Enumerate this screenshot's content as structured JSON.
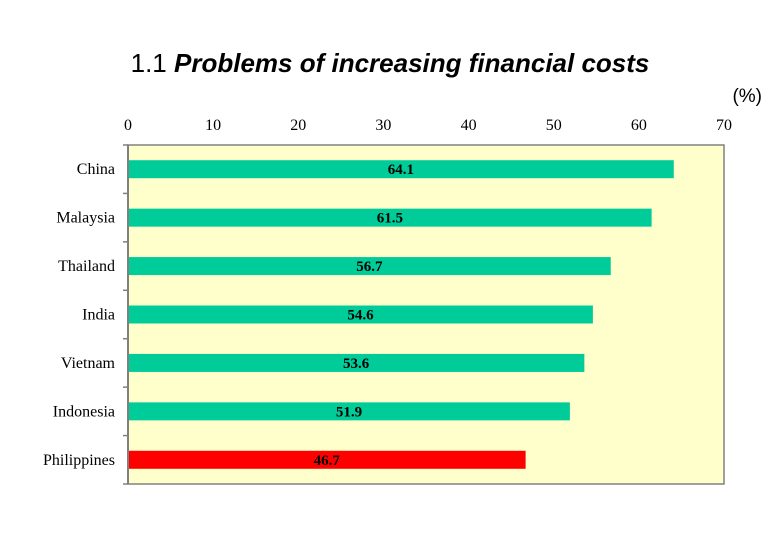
{
  "title_num": "1.1",
  "title_text": "Problems of increasing financial costs",
  "unit": "(%)",
  "colors": {
    "plot_bg": "#FFFFCC",
    "bar": "#00CC99",
    "highlight_bar": "#FF0000",
    "axis": "#808080"
  },
  "chart_data": {
    "type": "bar",
    "orientation": "horizontal",
    "title": "1.1 Problems of increasing financial costs",
    "categories": [
      "China",
      "Malaysia",
      "Thailand",
      "India",
      "Vietnam",
      "Indonesia",
      "Philippines"
    ],
    "values": [
      64.1,
      61.5,
      56.7,
      54.6,
      53.6,
      51.9,
      46.7
    ],
    "data_labels": [
      "64.1",
      "61.5",
      "56.7",
      "54.6",
      "53.6",
      "51.9",
      "46.7"
    ],
    "highlight": "Philippines",
    "xlim": [
      0,
      70
    ],
    "xticks": [
      0,
      10,
      20,
      30,
      40,
      50,
      60,
      70
    ],
    "xtick_labels": [
      "0",
      "10",
      "20",
      "30",
      "40",
      "50",
      "60",
      "70"
    ],
    "axis_position": "top",
    "grid": false,
    "legend": "none"
  }
}
